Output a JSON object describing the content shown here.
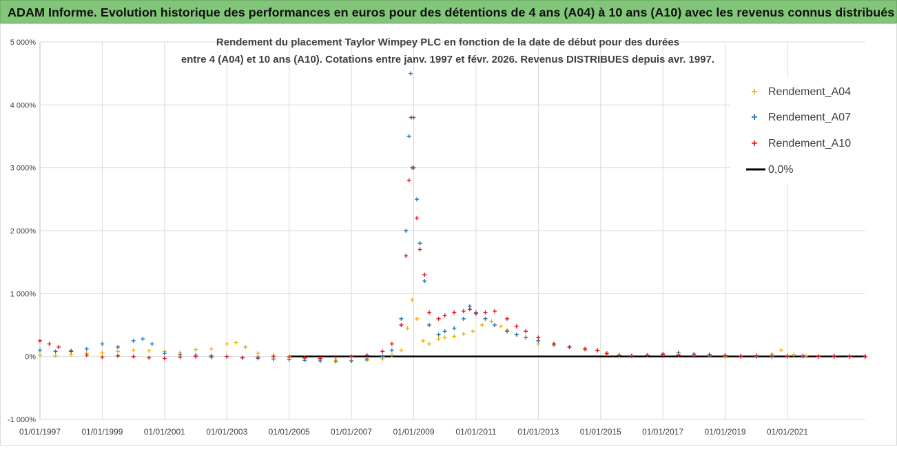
{
  "banner": {
    "title": "ADAM Informe. Evolution historique des performances en euros pour des détentions de 4 ans (A04) à 10 ans (A10) avec les revenus connus distribués"
  },
  "colors": {
    "banner_bg": "#82c67a",
    "A04": "#f0b400",
    "A07": "#2e75b6",
    "A10": "#e8141b",
    "zero": "#000000",
    "grid": "#d9d9d9"
  },
  "chart_data": {
    "type": "scatter",
    "title": "Rendement du placement Taylor Wimpey PLC en fonction de la date de début pour des durées",
    "subtitle": "entre 4 (A04) et 10 ans (A10).  Cotations entre janv. 1997 et févr. 2026. Revenus DISTRIBUES depuis avr. 1997.",
    "xlabel": "",
    "ylabel": "",
    "xlim": [
      1997.0,
      2023.5
    ],
    "ylim": [
      -1000,
      5000
    ],
    "y_ticks": [
      -1000,
      0,
      1000,
      2000,
      3000,
      4000,
      5000
    ],
    "y_tick_labels": [
      "-1 000%",
      "0%",
      "1 000%",
      "2 000%",
      "3 000%",
      "4 000%",
      "5 000%"
    ],
    "x_ticks": [
      1997,
      1999,
      2001,
      2003,
      2005,
      2007,
      2009,
      2011,
      2013,
      2015,
      2017,
      2019,
      2021
    ],
    "x_tick_labels": [
      "01/01/1997",
      "01/01/1999",
      "01/01/2001",
      "01/01/2003",
      "01/01/2005",
      "01/01/2007",
      "01/01/2009",
      "01/01/2011",
      "01/01/2013",
      "01/01/2015",
      "01/01/2017",
      "01/01/2019",
      "01/01/2021"
    ],
    "grid": true,
    "legend_position": "top-right",
    "series": [
      {
        "name": "Rendement_A04",
        "marker": "+",
        "x": [
          1997.0,
          1997.5,
          1998.0,
          1998.5,
          1999.0,
          1999.5,
          2000.0,
          2000.5,
          2001.0,
          2001.5,
          2002.0,
          2002.5,
          2003.0,
          2003.3,
          2003.6,
          2004.0,
          2004.5,
          2005.0,
          2005.5,
          2006.0,
          2006.5,
          2007.0,
          2007.5,
          2008.0,
          2008.3,
          2008.6,
          2008.8,
          2008.95,
          2009.1,
          2009.3,
          2009.5,
          2009.8,
          2010.0,
          2010.3,
          2010.6,
          2010.9,
          2011.2,
          2011.5,
          2011.8,
          2012.0,
          2012.3,
          2012.6,
          2013.0,
          2013.5,
          2014.0,
          2014.5,
          2014.9,
          2015.2,
          2015.6,
          2016.0,
          2016.5,
          2017.0,
          2017.5,
          2018.0,
          2018.5,
          2019.0,
          2019.5,
          2020.0,
          2020.5,
          2020.8,
          2021.2,
          2021.6,
          2022.0,
          2022.5,
          2023.0,
          2023.5
        ],
        "values": [
          20,
          10,
          30,
          50,
          60,
          80,
          100,
          90,
          80,
          60,
          110,
          120,
          200,
          220,
          150,
          50,
          20,
          0,
          -30,
          -50,
          -60,
          -70,
          -60,
          -40,
          20,
          100,
          450,
          900,
          600,
          250,
          200,
          280,
          300,
          320,
          360,
          400,
          500,
          560,
          480,
          420,
          350,
          300,
          200,
          180,
          150,
          110,
          90,
          40,
          20,
          10,
          20,
          40,
          30,
          20,
          10,
          0,
          10,
          20,
          40,
          100,
          30,
          10,
          0,
          10,
          0,
          0
        ]
      },
      {
        "name": "Rendement_A07",
        "marker": "+",
        "x": [
          1997.0,
          1997.5,
          1998.0,
          1998.5,
          1999.0,
          1999.5,
          2000.0,
          2000.3,
          2000.6,
          2001.0,
          2001.5,
          2002.0,
          2002.5,
          2003.0,
          2003.5,
          2004.0,
          2004.5,
          2005.0,
          2005.5,
          2006.0,
          2006.5,
          2007.0,
          2007.5,
          2008.0,
          2008.3,
          2008.6,
          2008.75,
          2008.85,
          2008.9,
          2008.95,
          2009.0,
          2009.1,
          2009.2,
          2009.35,
          2009.5,
          2009.8,
          2010.0,
          2010.3,
          2010.6,
          2010.8,
          2011.0,
          2011.3,
          2011.6,
          2012.0,
          2012.3,
          2012.6,
          2013.0,
          2013.5,
          2014.0,
          2014.5,
          2014.9,
          2015.2,
          2015.6,
          2016.0,
          2016.5,
          2017.0,
          2017.5,
          2018.0,
          2018.5,
          2019.0,
          2019.5,
          2020.0,
          2020.5,
          2021.0,
          2021.5,
          2022.0,
          2022.5,
          2023.0,
          2023.5
        ],
        "values": [
          100,
          80,
          90,
          120,
          200,
          150,
          250,
          280,
          200,
          50,
          30,
          20,
          10,
          0,
          -20,
          -30,
          -40,
          -50,
          -60,
          -70,
          -80,
          -70,
          -40,
          0,
          100,
          600,
          2000,
          3500,
          4500,
          3000,
          3800,
          2500,
          1800,
          1200,
          500,
          350,
          400,
          450,
          600,
          800,
          700,
          600,
          500,
          400,
          350,
          300,
          250,
          200,
          150,
          120,
          100,
          50,
          20,
          10,
          20,
          40,
          60,
          40,
          30,
          20,
          10,
          0,
          0,
          10,
          0,
          0,
          10,
          0,
          0
        ]
      },
      {
        "name": "Rendement_A10",
        "marker": "+",
        "x": [
          1997.0,
          1997.3,
          1997.6,
          1998.0,
          1998.5,
          1999.0,
          1999.5,
          2000.0,
          2000.5,
          2001.0,
          2001.5,
          2002.0,
          2002.5,
          2003.0,
          2003.5,
          2004.0,
          2004.5,
          2005.0,
          2005.5,
          2006.0,
          2006.5,
          2007.0,
          2007.5,
          2008.0,
          2008.3,
          2008.6,
          2008.75,
          2008.85,
          2008.92,
          2009.0,
          2009.1,
          2009.2,
          2009.35,
          2009.5,
          2009.8,
          2010.0,
          2010.3,
          2010.6,
          2010.8,
          2011.0,
          2011.3,
          2011.6,
          2012.0,
          2012.3,
          2012.6,
          2013.0,
          2013.5,
          2014.0,
          2014.5,
          2014.9,
          2015.2,
          2015.6,
          2016.0,
          2016.5,
          2017.0,
          2017.5,
          2018.0,
          2018.5,
          2019.0,
          2019.5,
          2020.0,
          2020.5,
          2021.0,
          2021.5,
          2022.0,
          2022.5,
          2023.0,
          2023.5
        ],
        "values": [
          250,
          200,
          150,
          80,
          20,
          -10,
          10,
          0,
          -20,
          -30,
          -10,
          0,
          -10,
          0,
          -20,
          -10,
          0,
          -10,
          -20,
          -30,
          -10,
          0,
          20,
          80,
          200,
          500,
          1600,
          2800,
          3800,
          3000,
          2200,
          1700,
          1300,
          700,
          600,
          650,
          700,
          720,
          750,
          680,
          700,
          720,
          600,
          480,
          400,
          300,
          200,
          150,
          120,
          100,
          50,
          20,
          10,
          20,
          30,
          20,
          10,
          20,
          10,
          0,
          10,
          10,
          0,
          10,
          0,
          0,
          0,
          0
        ]
      }
    ],
    "reference_line": {
      "name": "0,0%",
      "value": 0
    }
  }
}
